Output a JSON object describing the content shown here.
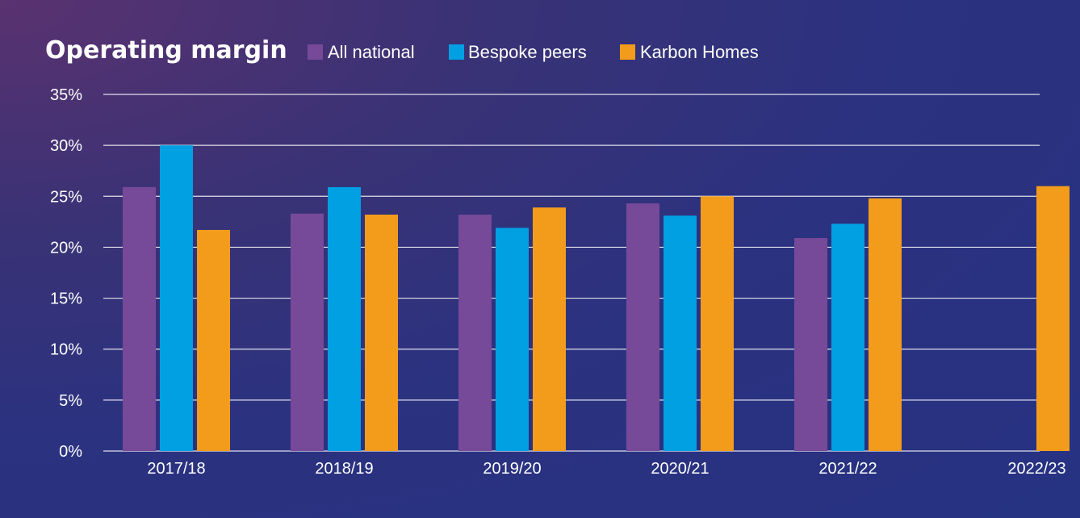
{
  "chart_data": {
    "type": "bar",
    "title": "Operating margin",
    "categories": [
      "2017/18",
      "2018/19",
      "2019/20",
      "2020/21",
      "2021/22",
      "2022/23"
    ],
    "series": [
      {
        "name": "All national",
        "color": "#764a99",
        "values": [
          25.9,
          23.3,
          23.2,
          24.3,
          20.9,
          null
        ]
      },
      {
        "name": "Bespoke peers",
        "color": "#00a0e3",
        "values": [
          30.0,
          25.9,
          21.9,
          23.1,
          22.3,
          null
        ]
      },
      {
        "name": "Karbon Homes",
        "color": "#f39c1c",
        "values": [
          21.7,
          23.2,
          23.9,
          25.0,
          24.8,
          26.0
        ]
      }
    ],
    "ylim": [
      0,
      35
    ],
    "yticks": [
      "0%",
      "5%",
      "10%",
      "15%",
      "20%",
      "25%",
      "30%",
      "35%"
    ],
    "ytick_values": [
      0,
      5,
      10,
      15,
      20,
      25,
      30,
      35
    ],
    "grid": true,
    "legend_placement": "top"
  }
}
